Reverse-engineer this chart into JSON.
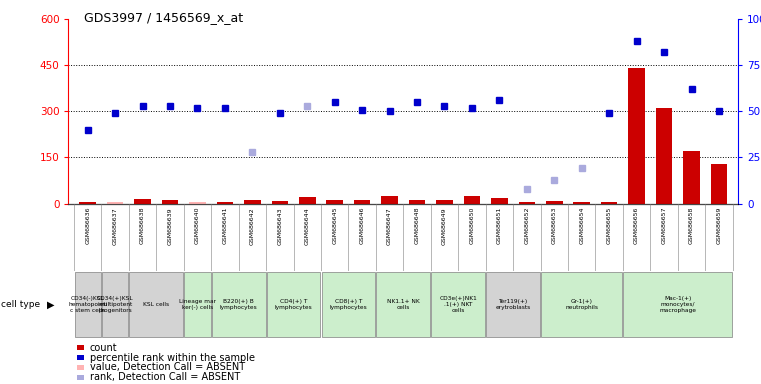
{
  "title": "GDS3997 / 1456569_x_at",
  "gsm_labels": [
    "GSM686636",
    "GSM686637",
    "GSM686638",
    "GSM686639",
    "GSM686640",
    "GSM686641",
    "GSM686642",
    "GSM686643",
    "GSM686644",
    "GSM686645",
    "GSM686646",
    "GSM686647",
    "GSM686648",
    "GSM686649",
    "GSM686650",
    "GSM686651",
    "GSM686652",
    "GSM686653",
    "GSM686654",
    "GSM686655",
    "GSM686656",
    "GSM686657",
    "GSM686658",
    "GSM686659"
  ],
  "count_values": [
    5,
    5,
    15,
    12,
    5,
    5,
    12,
    8,
    22,
    12,
    12,
    25,
    12,
    12,
    25,
    18,
    5,
    8,
    5,
    5,
    440,
    310,
    170,
    130
  ],
  "count_absent": [
    false,
    true,
    false,
    false,
    true,
    false,
    false,
    false,
    false,
    false,
    false,
    false,
    false,
    false,
    false,
    false,
    false,
    false,
    false,
    false,
    false,
    false,
    false,
    false
  ],
  "rank_values": [
    40,
    49,
    53,
    53,
    52,
    52,
    28,
    49,
    53,
    55,
    51,
    50,
    55,
    53,
    52,
    56,
    8,
    13,
    19,
    49,
    88,
    82,
    62,
    50
  ],
  "rank_absent": [
    false,
    false,
    false,
    false,
    false,
    false,
    true,
    false,
    true,
    false,
    false,
    false,
    false,
    false,
    false,
    false,
    true,
    true,
    true,
    false,
    false,
    false,
    false,
    false
  ],
  "cell_type_groups": [
    {
      "label": "CD34(-)KSL\nhematopoieti\nc stem cells",
      "start": 0,
      "end": 1,
      "color": "#d3d3d3"
    },
    {
      "label": "CD34(+)KSL\nmultipotent\nprogenitors",
      "start": 1,
      "end": 2,
      "color": "#d3d3d3"
    },
    {
      "label": "KSL cells",
      "start": 2,
      "end": 4,
      "color": "#d3d3d3"
    },
    {
      "label": "Lineage mar\nker(-) cells",
      "start": 4,
      "end": 5,
      "color": "#cceecc"
    },
    {
      "label": "B220(+) B\nlymphocytes",
      "start": 5,
      "end": 7,
      "color": "#cceecc"
    },
    {
      "label": "CD4(+) T\nlymphocytes",
      "start": 7,
      "end": 9,
      "color": "#cceecc"
    },
    {
      "label": "CD8(+) T\nlymphocytes",
      "start": 9,
      "end": 11,
      "color": "#cceecc"
    },
    {
      "label": "NK1.1+ NK\ncells",
      "start": 11,
      "end": 13,
      "color": "#cceecc"
    },
    {
      "label": "CD3e(+)NK1\n.1(+) NKT\ncells",
      "start": 13,
      "end": 15,
      "color": "#cceecc"
    },
    {
      "label": "Ter119(+)\nerytroblasts",
      "start": 15,
      "end": 17,
      "color": "#d3d3d3"
    },
    {
      "label": "Gr-1(+)\nneutrophils",
      "start": 17,
      "end": 20,
      "color": "#cceecc"
    },
    {
      "label": "Mac-1(+)\nmonocytes/\nmacrophage",
      "start": 20,
      "end": 24,
      "color": "#cceecc"
    }
  ],
  "ylim_left": [
    0,
    600
  ],
  "ylim_right": [
    0,
    100
  ],
  "yticks_left": [
    0,
    150,
    300,
    450,
    600
  ],
  "yticks_right": [
    0,
    25,
    50,
    75,
    100
  ],
  "bar_color": "#cc0000",
  "bar_absent_color": "#ffb3b3",
  "dot_color": "#0000cc",
  "dot_absent_color": "#aaaadd",
  "legend_items": [
    {
      "label": "count",
      "color": "#cc0000"
    },
    {
      "label": "percentile rank within the sample",
      "color": "#0000cc"
    },
    {
      "label": "value, Detection Call = ABSENT",
      "color": "#ffb3b3"
    },
    {
      "label": "rank, Detection Call = ABSENT",
      "color": "#aaaadd"
    }
  ]
}
